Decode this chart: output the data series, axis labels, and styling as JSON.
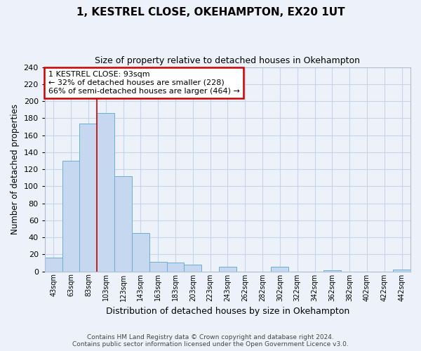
{
  "title": "1, KESTREL CLOSE, OKEHAMPTON, EX20 1UT",
  "subtitle": "Size of property relative to detached houses in Okehampton",
  "xlabel": "Distribution of detached houses by size in Okehampton",
  "ylabel": "Number of detached properties",
  "bin_labels": [
    "43sqm",
    "63sqm",
    "83sqm",
    "103sqm",
    "123sqm",
    "143sqm",
    "163sqm",
    "183sqm",
    "203sqm",
    "223sqm",
    "243sqm",
    "262sqm",
    "282sqm",
    "302sqm",
    "322sqm",
    "342sqm",
    "362sqm",
    "382sqm",
    "402sqm",
    "422sqm",
    "442sqm"
  ],
  "bar_heights": [
    16,
    130,
    174,
    186,
    112,
    45,
    11,
    10,
    8,
    0,
    5,
    0,
    0,
    5,
    0,
    0,
    1,
    0,
    0,
    0,
    2
  ],
  "bar_color": "#c5d8f0",
  "bar_edge_color": "#6baed6",
  "property_line_bin_index": 2.5,
  "ylim": [
    0,
    240
  ],
  "yticks": [
    0,
    20,
    40,
    60,
    80,
    100,
    120,
    140,
    160,
    180,
    200,
    220,
    240
  ],
  "annotation_title": "1 KESTREL CLOSE: 93sqm",
  "annotation_line1": "← 32% of detached houses are smaller (228)",
  "annotation_line2": "66% of semi-detached houses are larger (464) →",
  "annotation_box_color": "#ffffff",
  "annotation_box_edge_color": "#cc0000",
  "footer1": "Contains HM Land Registry data © Crown copyright and database right 2024.",
  "footer2": "Contains public sector information licensed under the Open Government Licence v3.0.",
  "grid_color": "#c8d4e8",
  "bg_color": "#edf2fa"
}
